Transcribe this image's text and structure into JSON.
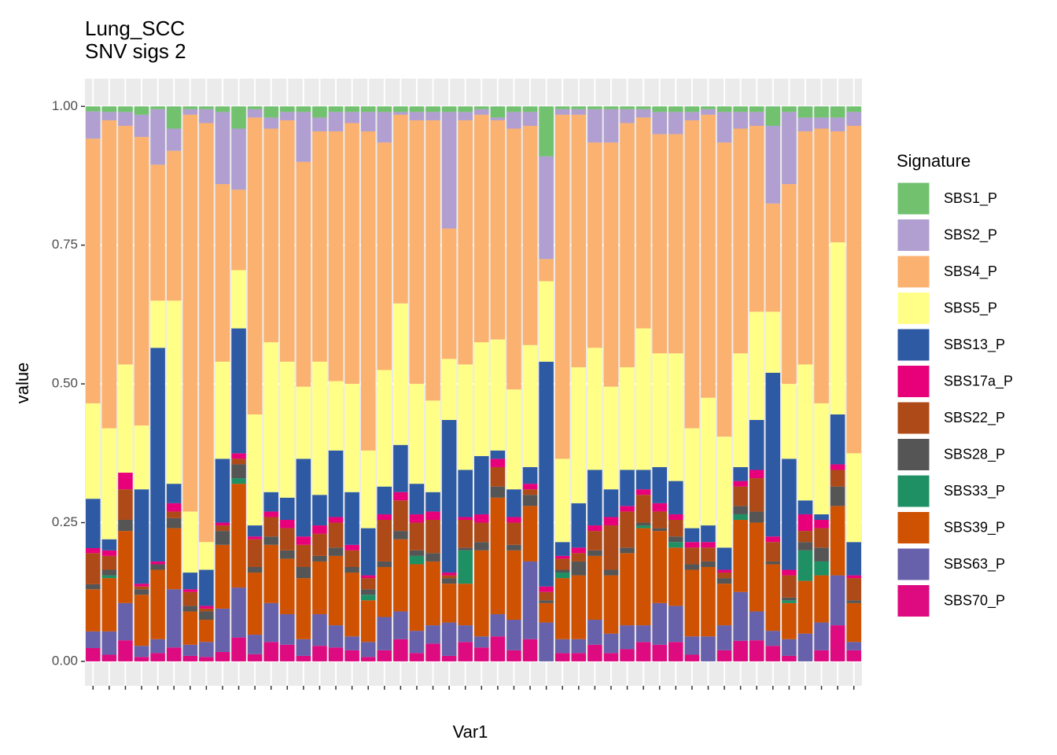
{
  "chart_data": {
    "type": "stacked_bar",
    "title": "Lung_SCC",
    "subtitle": "SNV sigs 2",
    "x_label": "Var1",
    "y_label": "value",
    "legend_title": "Signature",
    "legend": "right",
    "grid": true,
    "ylim": [
      -0.044,
      1.05
    ],
    "yticks": [
      {
        "value": 0,
        "label": "0.00"
      },
      {
        "value": 0.25,
        "label": "0.25"
      },
      {
        "value": 0.5,
        "label": "0.50"
      },
      {
        "value": 0.75,
        "label": "0.75"
      },
      {
        "value": 1,
        "label": "1.00"
      }
    ],
    "categories": [
      null,
      null,
      null,
      null,
      null,
      null,
      null,
      null,
      null,
      null,
      null,
      null,
      null,
      null,
      null,
      null,
      null,
      null,
      null,
      null,
      null,
      null,
      null,
      null,
      null,
      null,
      null,
      null,
      null,
      null,
      null,
      null,
      null,
      null,
      null,
      null,
      null,
      null,
      null,
      null,
      null,
      null,
      null,
      null,
      null,
      null,
      null,
      null
    ],
    "series": [
      {
        "name": "SBS1_P",
        "color": "#71c16f",
        "values": [
          0.009,
          0.01,
          0.01,
          0.015,
          0.005,
          0.04,
          0.005,
          0.005,
          0.01,
          0.04,
          0.005,
          0.02,
          0.01,
          0.01,
          0.02,
          0.01,
          0.01,
          0.01,
          0.01,
          0.01,
          0.01,
          0.01,
          0.01,
          0.01,
          0.005,
          0.02,
          0.01,
          0.01,
          0.09,
          0.005,
          0.005,
          0.005,
          0.005,
          0.005,
          0.005,
          0.01,
          0.01,
          0.01,
          0.005,
          0.01,
          0.01,
          0.01,
          0.035,
          0.01,
          0.02,
          0.02,
          0.02,
          0.01
        ]
      },
      {
        "name": "SBS2_P",
        "color": "#b09fd0",
        "values": [
          0.049,
          0.015,
          0.025,
          0.04,
          0.1,
          0.04,
          0.01,
          0.025,
          0.13,
          0.11,
          0.015,
          0.02,
          0.015,
          0.09,
          0.025,
          0.035,
          0.02,
          0.035,
          0.055,
          0.005,
          0.015,
          0.015,
          0.21,
          0.015,
          0.01,
          0.005,
          0.03,
          0.025,
          0.185,
          0.01,
          0.01,
          0.06,
          0.06,
          0.025,
          0.015,
          0.04,
          0.04,
          0.015,
          0.01,
          0.055,
          0.03,
          0.025,
          0.14,
          0.13,
          0.025,
          0.02,
          0.025,
          0.025
        ]
      },
      {
        "name": "SBS4_P",
        "color": "#fbb16f",
        "values": [
          0.477,
          0.555,
          0.43,
          0.52,
          0.245,
          0.27,
          0.715,
          0.755,
          0.32,
          0.145,
          0.535,
          0.385,
          0.435,
          0.405,
          0.415,
          0.45,
          0.47,
          0.575,
          0.41,
          0.34,
          0.475,
          0.505,
          0.235,
          0.44,
          0.41,
          0.395,
          0.47,
          0.395,
          0.04,
          0.62,
          0.455,
          0.37,
          0.44,
          0.44,
          0.38,
          0.395,
          0.395,
          0.555,
          0.51,
          0.53,
          0.405,
          0.335,
          0.195,
          0.36,
          0.42,
          0.495,
          0.2,
          0.59
        ]
      },
      {
        "name": "SBS5_P",
        "color": "#ffff88",
        "values": [
          0.172,
          0.2,
          0.195,
          0.115,
          0.085,
          0.33,
          0.11,
          0.05,
          0.175,
          0.105,
          0.2,
          0.27,
          0.245,
          0.13,
          0.24,
          0.125,
          0.195,
          0.14,
          0.21,
          0.255,
          0.18,
          0.165,
          0.11,
          0.19,
          0.205,
          0.2,
          0.18,
          0.22,
          0.145,
          0.15,
          0.245,
          0.22,
          0.185,
          0.185,
          0.255,
          0.205,
          0.23,
          0.18,
          0.23,
          0.2,
          0.205,
          0.195,
          0.11,
          0.135,
          0.245,
          0.2,
          0.31,
          0.16
        ]
      },
      {
        "name": "SBS13_P",
        "color": "#2e5aa4",
        "values": [
          0.089,
          0.02,
          0,
          0.17,
          0.385,
          0.035,
          0.03,
          0.065,
          0.115,
          0.225,
          0.02,
          0.035,
          0.04,
          0.14,
          0.055,
          0.12,
          0.095,
          0.085,
          0.05,
          0.085,
          0.055,
          0.035,
          0.275,
          0.085,
          0.105,
          0.015,
          0.05,
          0.03,
          0.405,
          0.025,
          0.08,
          0.1,
          0.05,
          0.065,
          0.035,
          0.065,
          0.06,
          0.025,
          0.03,
          0.04,
          0.025,
          0.09,
          0.295,
          0.2,
          0.025,
          0.01,
          0.09,
          0.06
        ]
      },
      {
        "name": "SBS17a_P",
        "color": "#e8007a",
        "values": [
          0.009,
          0.01,
          0.03,
          0.005,
          0.005,
          0.015,
          0.005,
          0.005,
          0.005,
          0.01,
          0.005,
          0.01,
          0.015,
          0.015,
          0.015,
          0.01,
          0.01,
          0.005,
          0.01,
          0.015,
          0.015,
          0.015,
          0.005,
          0.005,
          0.015,
          0.015,
          0.01,
          0.01,
          0.01,
          0.005,
          0.01,
          0.01,
          0.015,
          0.01,
          0.01,
          0.015,
          0.01,
          0.01,
          0.01,
          0.005,
          0.01,
          0.015,
          0.01,
          0.01,
          0.03,
          0.015,
          0.01,
          0.005
        ]
      },
      {
        "name": "SBS22_P",
        "color": "#ae4a17",
        "values": [
          0.056,
          0.025,
          0.055,
          0.005,
          0,
          0.012,
          0.025,
          0.005,
          0.01,
          0.01,
          0.05,
          0.035,
          0.04,
          0.04,
          0.04,
          0.045,
          0.03,
          0.02,
          0.075,
          0.055,
          0.05,
          0.06,
          0.005,
          0.05,
          0.035,
          0.035,
          0.04,
          0.01,
          0.015,
          0.02,
          0.015,
          0.035,
          0.08,
          0.065,
          0.05,
          0.03,
          0.03,
          0.03,
          0.025,
          0.01,
          0.035,
          0.06,
          0.035,
          0.04,
          0.02,
          0.035,
          0.03,
          0.04
        ]
      },
      {
        "name": "SBS28_P",
        "color": "#555555",
        "values": [
          0.009,
          0.01,
          0.02,
          0.01,
          0.01,
          0.018,
          0.01,
          0.015,
          0.025,
          0.025,
          0.01,
          0.015,
          0.015,
          0.02,
          0.01,
          0.015,
          0.01,
          0.01,
          0.01,
          0.015,
          0.01,
          0.015,
          0.01,
          0.005,
          0.015,
          0.02,
          0.01,
          0.02,
          0.005,
          0.005,
          0.025,
          0.01,
          0.01,
          0.01,
          0.005,
          0.005,
          0.01,
          0.01,
          0.01,
          0.01,
          0.015,
          0.02,
          0.005,
          0.005,
          0.015,
          0.025,
          0.035,
          0.005
        ]
      },
      {
        "name": "SBS33_P",
        "color": "#1e9063",
        "values": [
          0,
          0.005,
          0,
          0,
          0,
          0,
          0,
          0,
          0,
          0.01,
          0,
          0,
          0,
          0,
          0,
          0,
          0,
          0.01,
          0,
          0,
          0.015,
          0,
          0,
          0.06,
          0,
          0,
          0,
          0,
          0,
          0.01,
          0,
          0,
          0,
          0,
          0.005,
          0,
          0.01,
          0,
          0,
          0,
          0.01,
          0,
          0,
          0.005,
          0.055,
          0.025,
          0,
          0
        ]
      },
      {
        "name": "SBS39_P",
        "color": "#cf5202",
        "values": [
          0.076,
          0.096,
          0.13,
          0.092,
          0.125,
          0.11,
          0.06,
          0.04,
          0.115,
          0.187,
          0.112,
          0.105,
          0.1,
          0.11,
          0.095,
          0.125,
          0.115,
          0.075,
          0.09,
          0.13,
          0.12,
          0.115,
          0.07,
          0.075,
          0.155,
          0.21,
          0.125,
          0.1,
          0.035,
          0.11,
          0.115,
          0.115,
          0.105,
          0.13,
          0.175,
          0.13,
          0.105,
          0.12,
          0.125,
          0.075,
          0.13,
          0.16,
          0.12,
          0.065,
          0.095,
          0.085,
          0.125,
          0.07
        ]
      },
      {
        "name": "SBS63_P",
        "color": "#6760aa",
        "values": [
          0.03,
          0.042,
          0.067,
          0.02,
          0.025,
          0.105,
          0.02,
          0.027,
          0.078,
          0.09,
          0.035,
          0.07,
          0.055,
          0.03,
          0.057,
          0.04,
          0.025,
          0.027,
          0.06,
          0.05,
          0.04,
          0.033,
          0.06,
          0.03,
          0.02,
          0.04,
          0.055,
          0.14,
          0.07,
          0.025,
          0.025,
          0.045,
          0.035,
          0.043,
          0.03,
          0.075,
          0.065,
          0.033,
          0.045,
          0.045,
          0.088,
          0.052,
          0.027,
          0.03,
          0.05,
          0.05,
          0.09,
          0.015
        ]
      },
      {
        "name": "SBS70_P",
        "color": "#de0a80",
        "values": [
          0.024,
          0.012,
          0.038,
          0.008,
          0.015,
          0.025,
          0.01,
          0.008,
          0.017,
          0.043,
          0.013,
          0.035,
          0.03,
          0.01,
          0.028,
          0.025,
          0.02,
          0.008,
          0.02,
          0.04,
          0.015,
          0.032,
          0.01,
          0.035,
          0.025,
          0.045,
          0.02,
          0.04,
          0,
          0.015,
          0.015,
          0.03,
          0.015,
          0.022,
          0.035,
          0.03,
          0.035,
          0.012,
          0,
          0.02,
          0.037,
          0.038,
          0.028,
          0.01,
          0,
          0.02,
          0.065,
          0.02
        ]
      }
    ]
  }
}
